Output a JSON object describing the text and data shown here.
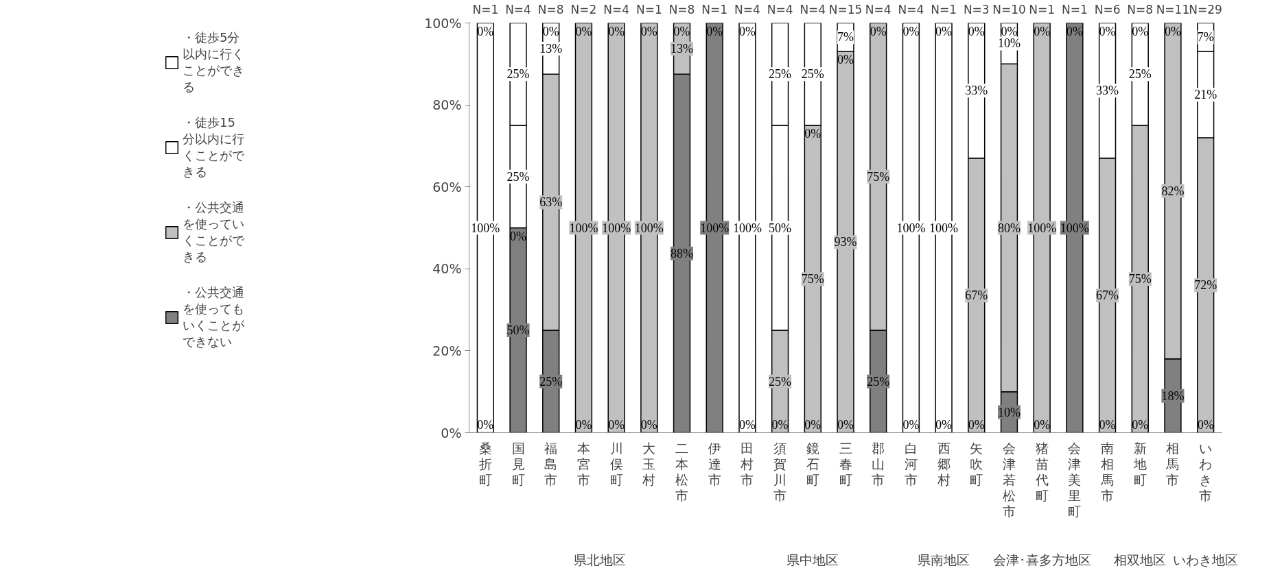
{
  "chart_data": {
    "type": "bar",
    "stacked": true,
    "categories": [
      "桑折町",
      "国見町",
      "福島市",
      "本宮市",
      "川俣町",
      "大玉村",
      "二本松市",
      "伊達市",
      "田村市",
      "須賀川市",
      "鏡石町",
      "三春町",
      "郡山市",
      "白河市",
      "西郷村",
      "矢吹町",
      "会津若松市",
      "猪苗代町",
      "会津美里町",
      "南相馬市",
      "新地町",
      "相馬市",
      "いわき市"
    ],
    "series": [
      {
        "name": "・公共交通を使ってもいくことができない",
        "color": "#808080",
        "values": [
          0,
          50,
          25,
          0,
          0,
          0,
          87.5,
          100,
          0,
          0,
          0,
          0,
          25,
          0,
          0,
          0,
          10,
          0,
          100,
          0,
          0,
          18,
          0
        ],
        "value_labels": [
          "0%",
          "50%",
          "25%",
          "0%",
          "0%",
          "0%",
          "88%",
          "100%",
          "0%",
          "0%",
          "0%",
          "0%",
          "25%",
          "0%",
          "0%",
          "0%",
          "10%",
          "0%",
          "100%",
          "0%",
          "0%",
          "18%",
          "0%"
        ]
      },
      {
        "name": "・公共交通を使っていくことができる",
        "color": "#c0c0c0",
        "values": [
          0,
          0,
          62.5,
          100,
          100,
          100,
          12.5,
          0,
          0,
          25,
          75,
          93,
          75,
          0,
          0,
          67,
          80,
          100,
          0,
          67,
          75,
          82,
          72
        ],
        "value_labels": [
          null,
          "0%",
          "63%",
          "100%",
          "100%",
          "100%",
          "13%",
          "0%",
          null,
          "25%",
          "75%",
          "93%",
          "75%",
          null,
          null,
          "67%",
          "80%",
          "100%",
          "0%",
          "67%",
          "75%",
          "82%",
          "72%"
        ]
      },
      {
        "name": "・徒歩15分以内に行くことができる",
        "color": "#ffffff",
        "values": [
          100,
          25,
          12.5,
          0,
          0,
          0,
          0,
          0,
          100,
          50,
          0,
          0,
          0,
          100,
          100,
          33,
          10,
          0,
          0,
          33,
          25,
          0,
          21
        ],
        "value_labels": [
          "100%",
          "25%",
          "13%",
          "0%",
          "0%",
          "0%",
          "0%",
          null,
          "100%",
          "50%",
          "0%",
          "0%",
          "0%",
          "100%",
          "100%",
          "33%",
          "10%",
          "0%",
          null,
          "33%",
          "25%",
          "0%",
          "21%"
        ]
      },
      {
        "name": "・徒歩5分以内に行くことができる",
        "color": "#ffffff",
        "values": [
          0,
          25,
          0,
          0,
          0,
          0,
          0,
          0,
          0,
          25,
          25,
          7,
          0,
          0,
          0,
          0,
          0,
          0,
          0,
          0,
          0,
          0,
          7
        ],
        "value_labels": [
          "0%",
          "25%",
          "0%",
          null,
          null,
          null,
          null,
          null,
          "0%",
          "25%",
          "25%",
          "7%",
          null,
          "0%",
          "0%",
          "0%",
          "0%",
          null,
          null,
          "0%",
          "0%",
          null,
          "7%"
        ]
      }
    ],
    "ylim": [
      0,
      100
    ],
    "yticks": [
      {
        "value": 0,
        "label": "0%"
      },
      {
        "value": 20,
        "label": "20%"
      },
      {
        "value": 40,
        "label": "40%"
      },
      {
        "value": 60,
        "label": "60%"
      },
      {
        "value": 80,
        "label": "80%"
      },
      {
        "value": 100,
        "label": "100%"
      }
    ],
    "grid": false,
    "legend": "left",
    "annotations": [
      "N=1",
      "N=4",
      "N=8",
      "N=2",
      "N=4",
      "N=1",
      "N=8",
      "N=1",
      "N=4",
      "N=4",
      "N=4",
      "N=15",
      "N=4",
      "N=4",
      "N=1",
      "N=3",
      "N=10",
      "N=1",
      "N=1",
      "N=6",
      "N=8",
      "N=11",
      "N=29",
      "県北地区",
      "県中地区",
      "県南地区",
      "会津･喜多方地区",
      "相双地区",
      "いわき地区"
    ]
  }
}
